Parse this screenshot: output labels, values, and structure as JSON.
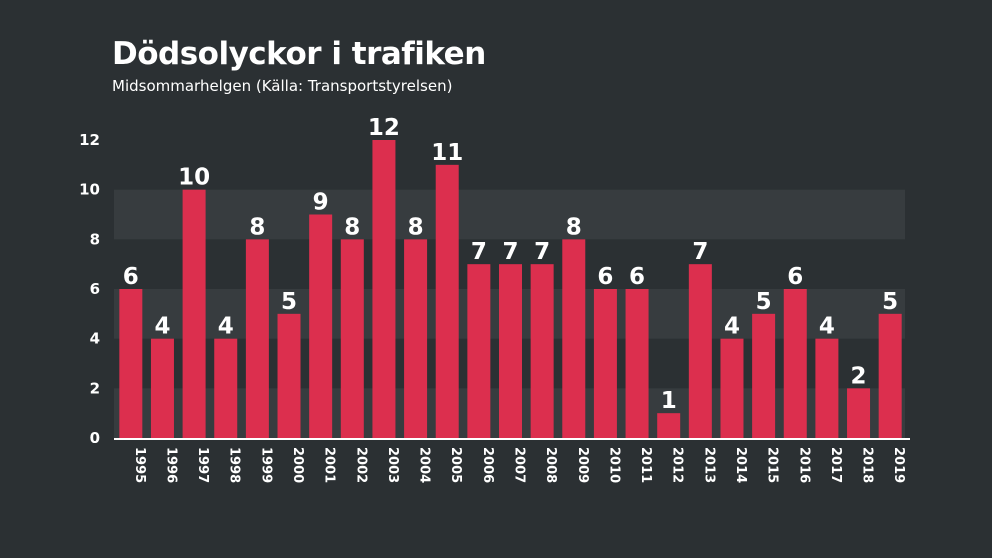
{
  "chart_data": {
    "type": "bar",
    "title": "Dödsolyckor i trafiken",
    "subtitle": "Midsommarhelgen (Källa: Transportstyrelsen)",
    "categories": [
      "1995",
      "1996",
      "1997",
      "1998",
      "1999",
      "2000",
      "2001",
      "2002",
      "2003",
      "2004",
      "2005",
      "2006",
      "2007",
      "2008",
      "2009",
      "2010",
      "2011",
      "2012",
      "2013",
      "2014",
      "2015",
      "2016",
      "2017",
      "2018",
      "2019"
    ],
    "values": [
      6,
      4,
      10,
      4,
      8,
      5,
      9,
      8,
      12,
      8,
      11,
      7,
      7,
      7,
      8,
      6,
      6,
      1,
      7,
      4,
      5,
      6,
      4,
      2,
      5
    ],
    "ylim": [
      0,
      12
    ],
    "yticks": [
      0,
      2,
      4,
      6,
      8,
      10,
      12
    ],
    "grid": "horizontal bands",
    "legend": "none",
    "colors": {
      "background": "#2b3033",
      "band": "#373c3f",
      "bar": "#dc2f4e",
      "text": "#ffffff",
      "axis": "#ffffff"
    }
  }
}
